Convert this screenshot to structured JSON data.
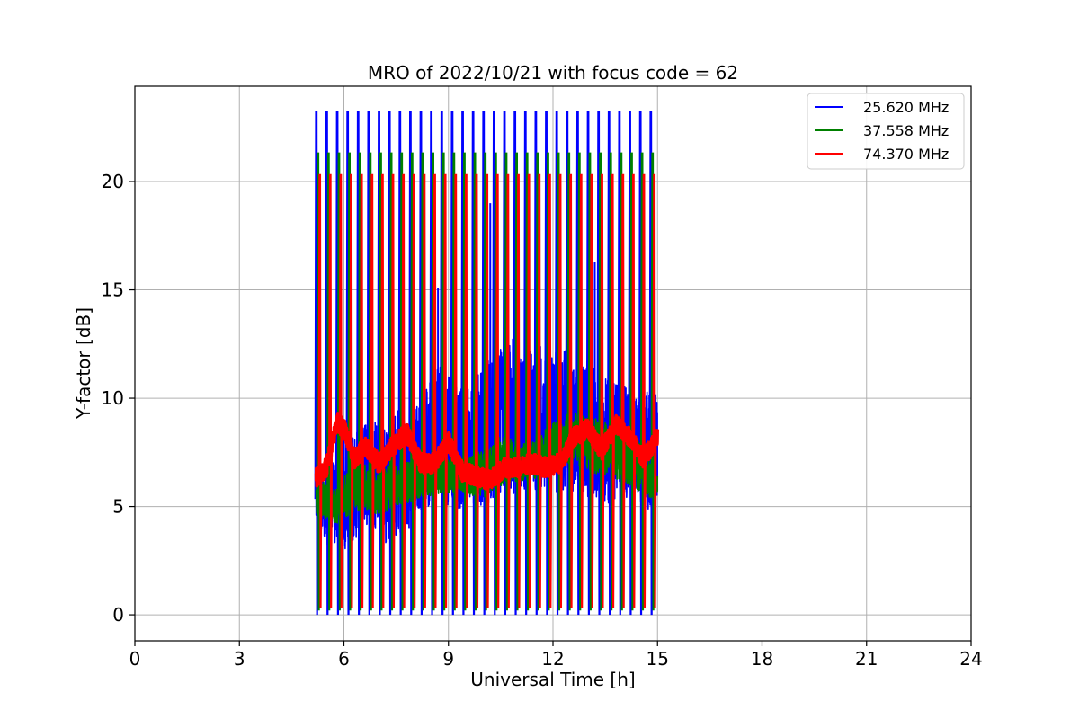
{
  "chart_data": {
    "type": "line",
    "title": "MRO of 2022/10/21 with focus code = 62",
    "xlabel": "Universal Time [h]",
    "ylabel": "Y-factor [dB]",
    "xlim": [
      0,
      24
    ],
    "ylim": [
      -1.2,
      24.4
    ],
    "xticks": [
      0,
      3,
      6,
      9,
      12,
      15,
      18,
      21,
      24
    ],
    "yticks": [
      0,
      5,
      10,
      15,
      20
    ],
    "grid": true,
    "legend": "top-right",
    "series": [
      {
        "name": "25.620 MHz",
        "color": "#0000ff",
        "pulse_times": [
          5.2,
          5.5,
          5.8,
          6.1,
          6.4,
          6.7,
          7.0,
          7.3,
          7.6,
          7.9,
          8.2,
          8.5,
          8.8,
          9.1,
          9.4,
          9.7,
          10.0,
          10.3,
          10.6,
          10.9,
          11.2,
          11.5,
          11.8,
          12.1,
          12.4,
          12.7,
          13.0,
          13.3,
          13.6,
          13.9,
          14.2,
          14.5,
          14.8
        ],
        "pulse_peak": 23.2,
        "pulse_min": 0.0,
        "baseline": {
          "x": [
            5.2,
            5.6,
            6.0,
            6.4,
            6.8,
            7.2,
            7.6,
            8.0,
            8.4,
            8.8,
            9.2,
            9.6,
            10.0,
            10.4,
            10.8,
            11.2,
            11.6,
            12.0,
            12.4,
            12.8,
            13.2,
            13.6,
            14.0,
            14.4,
            14.8,
            15.0
          ],
          "low": [
            3.5,
            3.2,
            3.0,
            3.6,
            4.2,
            3.2,
            3.8,
            4.0,
            5.0,
            5.2,
            4.8,
            5.2,
            5.0,
            5.4,
            5.6,
            5.4,
            5.8,
            5.6,
            5.8,
            5.6,
            5.2,
            5.0,
            5.4,
            5.0,
            4.6,
            5.2
          ],
          "high": [
            7.2,
            7.0,
            8.2,
            8.5,
            9.0,
            8.6,
            10.0,
            9.6,
            11.0,
            11.5,
            10.6,
            10.4,
            11.5,
            12.2,
            13.0,
            12.0,
            12.4,
            12.2,
            12.6,
            12.0,
            11.4,
            10.8,
            10.6,
            10.2,
            10.4,
            10.2
          ]
        },
        "spikes": [
          {
            "x": 10.2,
            "y": 19.0
          },
          {
            "x": 8.7,
            "y": 15.1
          },
          {
            "x": 13.2,
            "y": 16.3
          },
          {
            "x": 11.6,
            "y": 16.6
          }
        ]
      },
      {
        "name": "37.558 MHz",
        "color": "#008000",
        "pulse_times": [
          5.25,
          5.55,
          5.85,
          6.15,
          6.45,
          6.75,
          7.05,
          7.35,
          7.65,
          7.95,
          8.25,
          8.55,
          8.85,
          9.15,
          9.45,
          9.75,
          10.05,
          10.35,
          10.65,
          10.95,
          11.25,
          11.55,
          11.85,
          12.15,
          12.45,
          12.75,
          13.05,
          13.35,
          13.65,
          13.95,
          14.25,
          14.55,
          14.85
        ],
        "pulse_peak": 21.3,
        "pulse_min": 0.2,
        "baseline": {
          "x": [
            5.2,
            5.8,
            6.4,
            7.0,
            7.6,
            8.2,
            8.8,
            9.4,
            10.0,
            10.6,
            11.2,
            11.8,
            12.4,
            13.0,
            13.6,
            14.2,
            14.8,
            15.0
          ],
          "low": [
            4.6,
            4.2,
            4.8,
            4.6,
            5.0,
            5.4,
            5.6,
            5.6,
            5.4,
            6.0,
            6.2,
            6.4,
            7.0,
            6.6,
            6.4,
            6.0,
            5.4,
            5.6
          ],
          "high": [
            6.2,
            6.0,
            7.2,
            6.8,
            7.0,
            7.2,
            7.4,
            7.2,
            7.6,
            8.4,
            8.0,
            8.6,
            9.4,
            9.2,
            8.8,
            8.6,
            7.2,
            6.4
          ]
        }
      },
      {
        "name": "74.370 MHz",
        "color": "#ff0000",
        "pulse_times": [
          5.3,
          5.6,
          5.9,
          6.2,
          6.5,
          6.8,
          7.1,
          7.4,
          7.7,
          8.0,
          8.3,
          8.6,
          8.9,
          9.2,
          9.5,
          9.8,
          10.1,
          10.4,
          10.7,
          11.0,
          11.3,
          11.6,
          11.9,
          12.2,
          12.5,
          12.8,
          13.1,
          13.4,
          13.7,
          14.0,
          14.3,
          14.6,
          14.9
        ],
        "pulse_peak": 20.3,
        "pulse_min": 0.3,
        "baseline": {
          "x": [
            5.2,
            5.5,
            5.8,
            6.0,
            6.3,
            6.6,
            7.0,
            7.4,
            7.8,
            8.2,
            8.6,
            9.0,
            9.4,
            9.8,
            10.2,
            10.6,
            11.0,
            11.4,
            11.8,
            12.2,
            12.6,
            13.0,
            13.4,
            13.8,
            14.2,
            14.6,
            15.0
          ],
          "y": [
            6.3,
            6.8,
            8.9,
            8.6,
            7.2,
            7.8,
            7.0,
            7.8,
            8.4,
            7.0,
            7.0,
            8.0,
            6.6,
            6.4,
            6.2,
            6.8,
            6.8,
            7.0,
            6.8,
            7.0,
            8.2,
            8.6,
            7.6,
            8.8,
            8.2,
            7.2,
            8.2
          ]
        }
      }
    ]
  }
}
